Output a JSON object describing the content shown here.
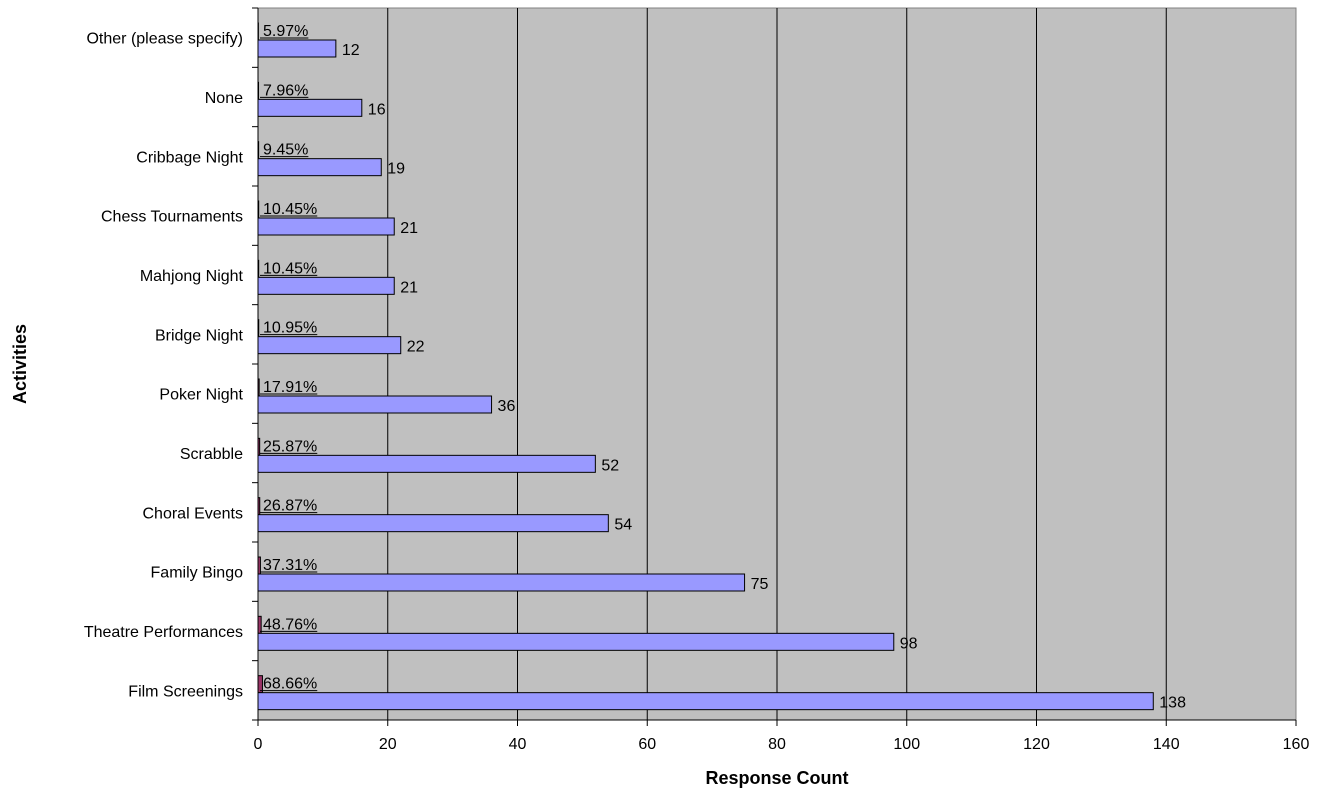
{
  "chart_data": {
    "type": "bar",
    "orientation": "horizontal",
    "categories": [
      "Other (please specify)",
      "None",
      "Cribbage Night",
      "Chess Tournaments",
      "Mahjong Night",
      "Bridge Night",
      "Poker Night",
      "Scrabble",
      "Choral Events",
      "Family Bingo",
      "Theatre Performances",
      "Film Screenings"
    ],
    "series": [
      {
        "values": [
          5.97,
          7.96,
          9.45,
          10.45,
          10.45,
          10.95,
          17.91,
          25.87,
          26.87,
          37.31,
          48.76,
          68.66
        ],
        "labels": [
          "5.97%",
          "7.96%",
          "9.45%",
          "10.45%",
          "10.45%",
          "10.95%",
          "17.91%",
          "25.87%",
          "26.87%",
          "37.31%",
          "48.76%",
          "68.66%"
        ],
        "color": "#993366"
      },
      {
        "values": [
          12,
          16,
          19,
          21,
          21,
          22,
          36,
          52,
          54,
          75,
          98,
          138
        ],
        "labels": [
          "12",
          "16",
          "19",
          "21",
          "21",
          "22",
          "36",
          "52",
          "54",
          "75",
          "98",
          "138"
        ],
        "color": "#9999ff"
      }
    ],
    "xlabel": "Response Count",
    "ylabel": "Activities",
    "xlim": [
      0,
      160
    ],
    "x_ticks": [
      0,
      20,
      40,
      60,
      80,
      100,
      120,
      140,
      160
    ],
    "grid": "vertical",
    "plot_background": "#c0c0c0"
  }
}
